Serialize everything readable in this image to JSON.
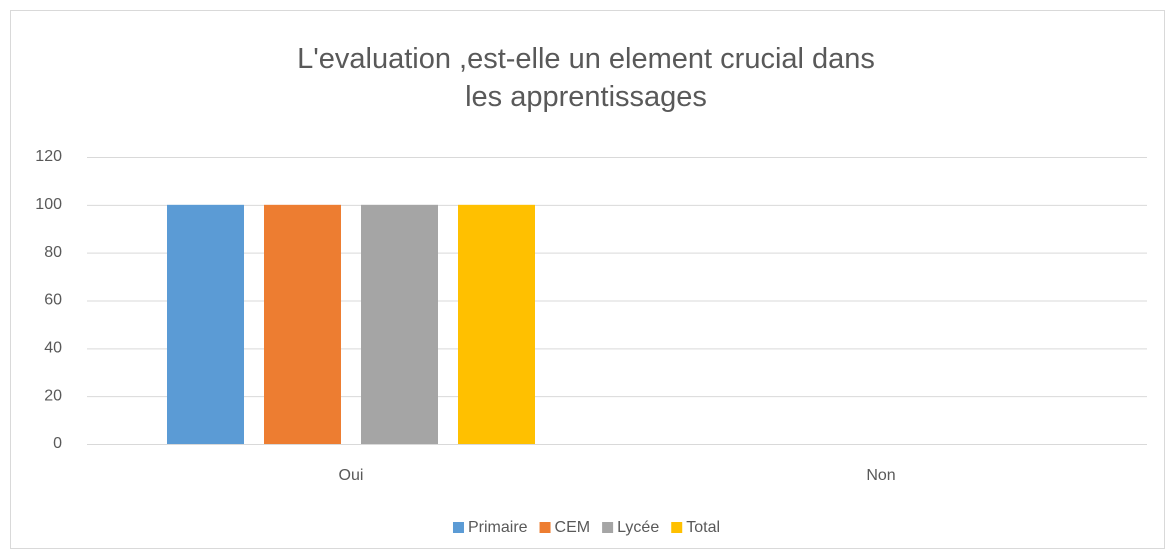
{
  "chart_data": {
    "type": "bar",
    "title": "L'evaluation ,est-elle un element crucial dans les apprentissages",
    "categories": [
      "Oui",
      "Non"
    ],
    "series": [
      {
        "name": "Primaire",
        "color": "#5b9bd5",
        "values": [
          100,
          0
        ]
      },
      {
        "name": "CEM",
        "color": "#ed7d31",
        "values": [
          100,
          0
        ]
      },
      {
        "name": "Lycée",
        "color": "#a5a5a5",
        "values": [
          100,
          0
        ]
      },
      {
        "name": "Total",
        "color": "#ffc000",
        "values": [
          100,
          0
        ]
      }
    ],
    "ylim": [
      0,
      120
    ],
    "yticks": [
      0,
      20,
      40,
      60,
      80,
      100,
      120
    ],
    "grid": true,
    "legend": "bottom"
  }
}
